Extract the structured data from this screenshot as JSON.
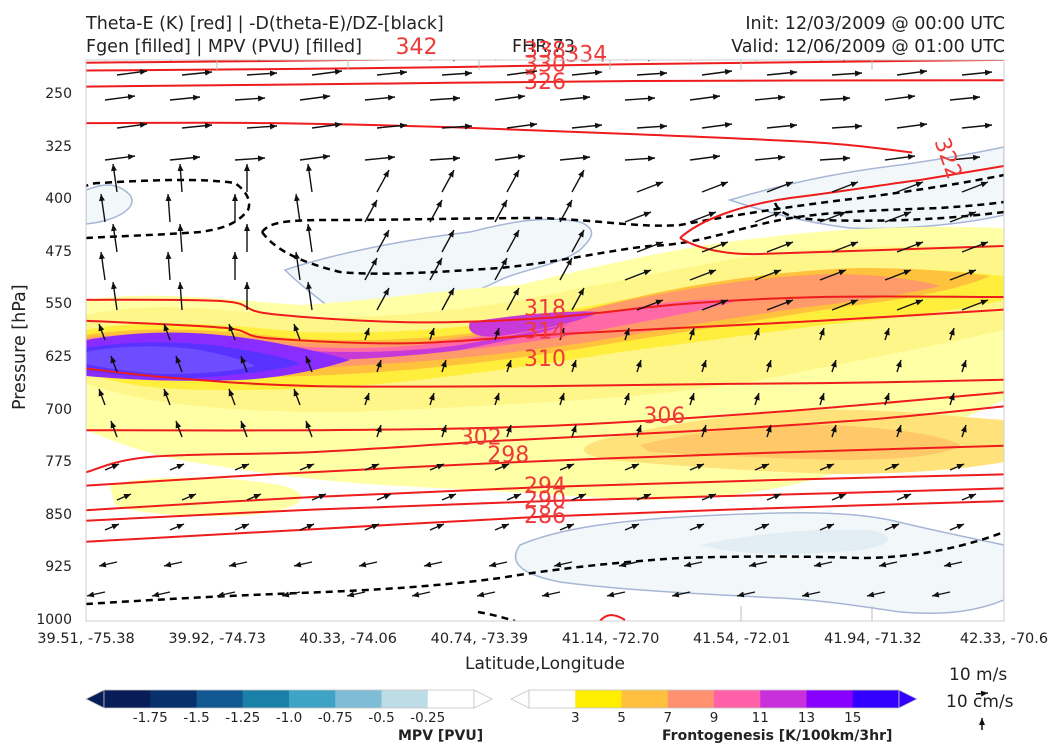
{
  "header": {
    "title_left_1": "Theta-E (K) [red] | -D(theta-E)/DZ-[black]",
    "title_left_2": "Fgen [filled] | MPV (PVU) [filled]",
    "fhr": "FHR:73",
    "init": "Init: 12/03/2009 @ 00:00 UTC",
    "valid": "Valid: 12/06/2009 @ 01:00 UTC"
  },
  "chart_data": {
    "type": "cross-section",
    "xlabel": "Latitude,Longitude",
    "ylabel": "Pressure [hPa]",
    "x_ticks": [
      "39.51, -75.38",
      "39.92, -74.73",
      "40.33, -74.06",
      "40.74, -73.39",
      "41.14, -72.70",
      "41.54, -72.01",
      "41.94, -71.32",
      "42.33, -70.6"
    ],
    "y_ticks": [
      "250",
      "325",
      "400",
      "475",
      "550",
      "625",
      "700",
      "775",
      "850",
      "925",
      "1000"
    ],
    "y_range": [
      175,
      1000
    ],
    "theta_e_color": "#ee1c1c",
    "theta_e_labels": [
      {
        "text": "342",
        "x": 0.36,
        "p": 180
      },
      {
        "text": "338",
        "x": 0.5,
        "p": 185
      },
      {
        "text": "334",
        "x": 0.545,
        "p": 191
      },
      {
        "text": "330",
        "x": 0.5,
        "p": 205
      },
      {
        "text": "326",
        "x": 0.5,
        "p": 230
      },
      {
        "text": "322",
        "x": 0.94,
        "p": 340
      },
      {
        "text": "318",
        "x": 0.5,
        "p": 553
      },
      {
        "text": "314",
        "x": 0.5,
        "p": 586
      },
      {
        "text": "310",
        "x": 0.5,
        "p": 625
      },
      {
        "text": "306",
        "x": 0.63,
        "p": 706
      },
      {
        "text": "302",
        "x": 0.43,
        "p": 737
      },
      {
        "text": "298",
        "x": 0.46,
        "p": 762
      },
      {
        "text": "294",
        "x": 0.5,
        "p": 806
      },
      {
        "text": "290",
        "x": 0.5,
        "p": 826
      },
      {
        "text": "286",
        "x": 0.5,
        "p": 849
      }
    ],
    "theta_e_lines": [
      {
        "value": 342,
        "pts": [
          [
            0,
            185
          ],
          [
            0.3,
            183
          ],
          [
            0.6,
            182
          ],
          [
            1,
            180
          ]
        ]
      },
      {
        "value": 338,
        "pts": [
          [
            0,
            197
          ],
          [
            0.3,
            192
          ],
          [
            0.6,
            187
          ],
          [
            1,
            183
          ]
        ]
      },
      {
        "value": 334,
        "pts": [
          [
            0,
            204
          ],
          [
            0.3,
            200
          ],
          [
            0.6,
            194
          ],
          [
            1,
            188
          ]
        ]
      },
      {
        "value": 330,
        "pts": [
          [
            0,
            215
          ],
          [
            0.3,
            212
          ],
          [
            0.6,
            206
          ],
          [
            1,
            200
          ]
        ]
      },
      {
        "value": 326,
        "pts": [
          [
            0,
            238
          ],
          [
            0.3,
            234
          ],
          [
            0.6,
            230
          ],
          [
            1,
            229
          ]
        ]
      },
      {
        "value": 322,
        "pts": [
          [
            0,
            290
          ],
          [
            0.2,
            290
          ],
          [
            0.4,
            296
          ],
          [
            0.6,
            306
          ],
          [
            0.8,
            318
          ],
          [
            0.9,
            332
          ]
        ]
      },
      {
        "value": 318,
        "pts": [
          [
            0,
            542
          ],
          [
            0.15,
            544
          ],
          [
            0.2,
            562
          ],
          [
            0.35,
            574
          ],
          [
            0.5,
            568
          ],
          [
            0.65,
            548
          ],
          [
            0.8,
            538
          ],
          [
            1,
            538
          ]
        ]
      },
      {
        "value": 314,
        "pts": [
          [
            0,
            572
          ],
          [
            0.15,
            582
          ],
          [
            0.2,
            597
          ],
          [
            0.35,
            604
          ],
          [
            0.5,
            592
          ],
          [
            0.65,
            582
          ],
          [
            0.8,
            572
          ],
          [
            1,
            556
          ]
        ]
      },
      {
        "value": 310,
        "pts": [
          [
            0,
            640
          ],
          [
            0.1,
            654
          ],
          [
            0.25,
            665
          ],
          [
            0.5,
            665
          ],
          [
            0.7,
            662
          ],
          [
            0.85,
            660
          ],
          [
            1,
            656
          ]
        ]
      },
      {
        "value": 306,
        "pts": [
          [
            0,
            728
          ],
          [
            0.25,
            728
          ],
          [
            0.5,
            722
          ],
          [
            0.75,
            702
          ],
          [
            1,
            674
          ]
        ]
      },
      {
        "value": 302,
        "pts": [
          [
            0,
            788
          ],
          [
            0.07,
            766
          ],
          [
            0.25,
            759
          ],
          [
            0.45,
            743
          ],
          [
            0.65,
            730
          ],
          [
            0.85,
            713
          ],
          [
            1,
            694
          ]
        ]
      },
      {
        "value": 298,
        "pts": [
          [
            0,
            807
          ],
          [
            0.2,
            791
          ],
          [
            0.46,
            774
          ],
          [
            0.7,
            762
          ],
          [
            1,
            750
          ]
        ]
      },
      {
        "value": 294,
        "pts": [
          [
            0,
            842
          ],
          [
            0.25,
            823
          ],
          [
            0.5,
            809
          ],
          [
            0.75,
            799
          ],
          [
            1,
            791
          ]
        ]
      },
      {
        "value": 290,
        "pts": [
          [
            0,
            857
          ],
          [
            0.25,
            841
          ],
          [
            0.5,
            829
          ],
          [
            0.75,
            820
          ],
          [
            1,
            811
          ]
        ]
      },
      {
        "value": 286,
        "pts": [
          [
            0,
            887
          ],
          [
            0.25,
            869
          ],
          [
            0.5,
            851
          ],
          [
            0.75,
            839
          ],
          [
            1,
            829
          ]
        ]
      }
    ],
    "dthetae_dz_color": "#000000",
    "mpv_colorbar": {
      "title": "MPV [PVU]",
      "ticks": [
        "-1.75",
        "-1.5",
        "-1.25",
        "-1.0",
        "-0.75",
        "-0.5",
        "-0.25"
      ],
      "colors": [
        "#081d58",
        "#08306b",
        "#125994",
        "#1a80a8",
        "#3ea3c4",
        "#7fbcd5",
        "#bcdce6",
        "#ffffff"
      ]
    },
    "fgen_colorbar": {
      "title": "Frontogenesis [K/100km/3hr]",
      "ticks": [
        "3",
        "5",
        "7",
        "9",
        "11",
        "13",
        "15"
      ],
      "colors": [
        "#ffffff",
        "#ffee00",
        "#ffc040",
        "#ff9070",
        "#ff60a8",
        "#c830dc",
        "#8800ff",
        "#3300ff"
      ]
    },
    "wind_reference": {
      "horizontal": "10 m/s",
      "vertical": "10 cm/s"
    }
  }
}
